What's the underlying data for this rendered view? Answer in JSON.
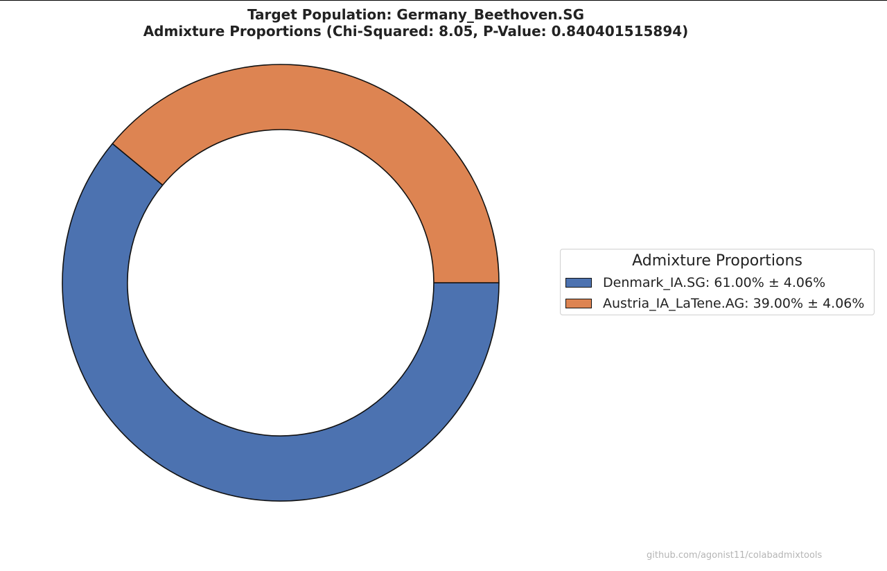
{
  "title": {
    "line1": "Target Population: Germany_Beethoven.SG",
    "line2": "Admixture Proportions (Chi-Squared: 8.05, P-Value: 0.840401515894)"
  },
  "chart_data": {
    "type": "pie",
    "style": "donut",
    "categories": [
      "Denmark_IA.SG",
      "Austria_IA_LaTene.AG"
    ],
    "values": [
      61.0,
      39.0
    ],
    "errors": [
      4.06,
      4.06
    ],
    "colors": [
      "#4c72b0",
      "#dd8452"
    ],
    "start_angle_deg": 0,
    "direction": "clockwise",
    "legend": {
      "title": "Admixture Proportions",
      "placement": "right",
      "entries": [
        "Denmark_IA.SG: 61.00% ± 4.06%",
        "Austria_IA_LaTene.AG: 39.00% ± 4.06%"
      ]
    }
  },
  "watermark": "github.com/agonist11/colabadmixtools"
}
